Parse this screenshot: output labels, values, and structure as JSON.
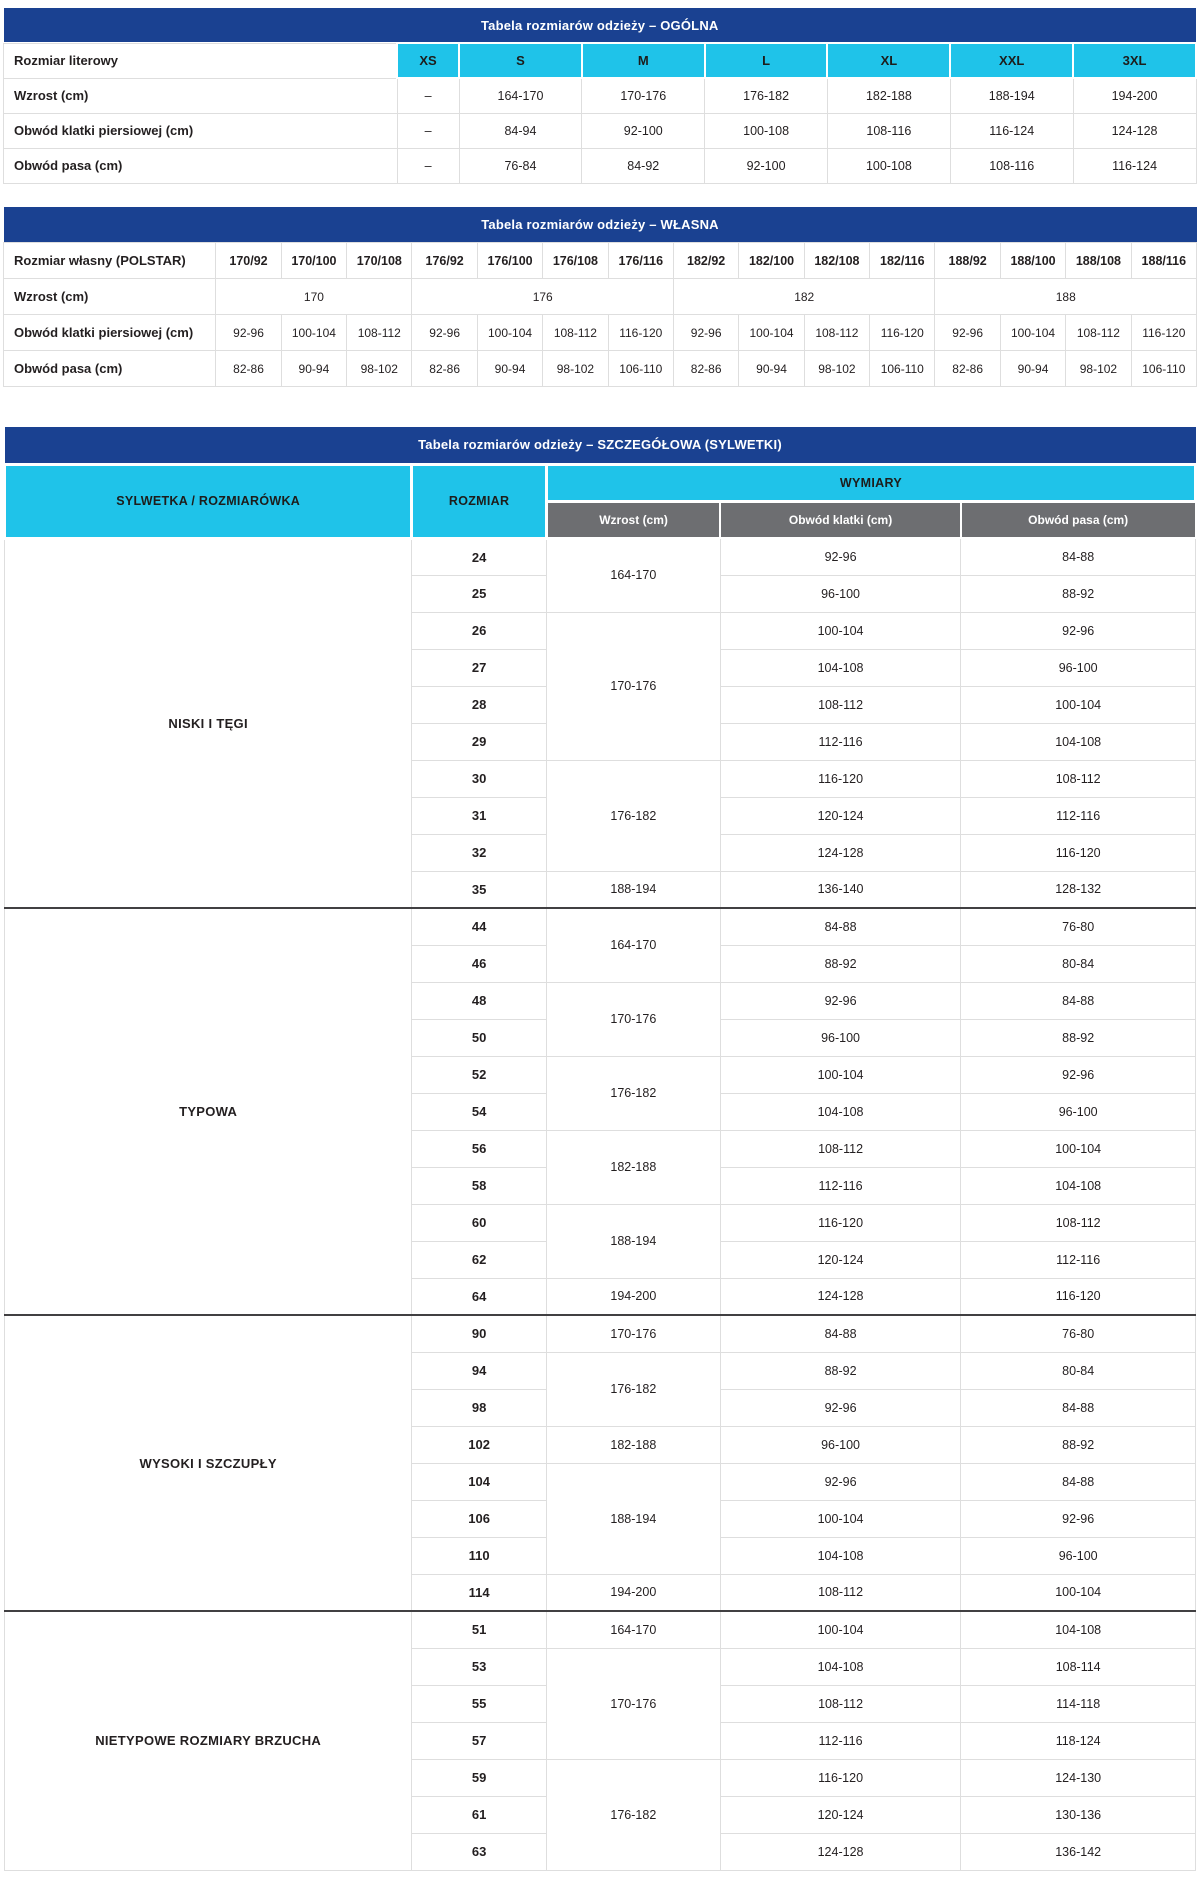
{
  "colors": {
    "navy": "#1a4191",
    "cyan": "#1fc3e9",
    "gray": "#6d6e71",
    "dark_divider": "#414042",
    "text": "#231f20"
  },
  "table_general": {
    "title": "Tabela rozmiarów odzieży – OGÓLNA",
    "size_row_label": "Rozmiar literowy",
    "sizes": [
      "XS",
      "S",
      "M",
      "L",
      "XL",
      "XXL",
      "3XL"
    ],
    "rows": [
      {
        "label": "Wzrost (cm)",
        "values": [
          "–",
          "164-170",
          "170-176",
          "176-182",
          "182-188",
          "188-194",
          "194-200"
        ]
      },
      {
        "label": "Obwód klatki piersiowej (cm)",
        "values": [
          "–",
          "84-94",
          "92-100",
          "100-108",
          "108-116",
          "116-124",
          "124-128"
        ]
      },
      {
        "label": "Obwód pasa (cm)",
        "values": [
          "–",
          "76-84",
          "84-92",
          "92-100",
          "100-108",
          "108-116",
          "116-124"
        ]
      }
    ]
  },
  "table_own": {
    "title": "Tabela rozmiarów odzieży – WŁASNA",
    "size_row_label": "Rozmiar własny (POLSTAR)",
    "sizes": [
      "170/92",
      "170/100",
      "170/108",
      "176/92",
      "176/100",
      "176/108",
      "176/116",
      "182/92",
      "182/100",
      "182/108",
      "182/116",
      "188/92",
      "188/100",
      "188/108",
      "188/116"
    ],
    "height_row_label": "Wzrost (cm)",
    "height_groups": [
      {
        "value": "170",
        "span": 3
      },
      {
        "value": "176",
        "span": 4
      },
      {
        "value": "182",
        "span": 4
      },
      {
        "value": "188",
        "span": 4
      }
    ],
    "chest_row_label": "Obwód klatki piersiowej (cm)",
    "chest_values": [
      "92-96",
      "100-104",
      "108-112",
      "92-96",
      "100-104",
      "108-112",
      "116-120",
      "92-96",
      "100-104",
      "108-112",
      "116-120",
      "92-96",
      "100-104",
      "108-112",
      "116-120"
    ],
    "waist_row_label": "Obwód pasa (cm)",
    "waist_values": [
      "82-86",
      "90-94",
      "98-102",
      "82-86",
      "90-94",
      "98-102",
      "106-110",
      "82-86",
      "90-94",
      "98-102",
      "106-110",
      "82-86",
      "90-94",
      "98-102",
      "106-110"
    ]
  },
  "table_detailed": {
    "title": "Tabela rozmiarów odzieży – SZCZEGÓŁOWA (SYLWETKI)",
    "col_silhouette": "SYLWETKA / ROZMIARÓWKA",
    "col_size": "ROZMIAR",
    "col_dimensions": "WYMIARY",
    "sub_height": "Wzrost (cm)",
    "sub_chest": "Obwód klatki (cm)",
    "sub_waist": "Obwód pasa (cm)",
    "sections": [
      {
        "name": "NISKI I TĘGI",
        "rows": [
          {
            "size": "24",
            "height": "164-170",
            "height_span": 2,
            "chest": "92-96",
            "waist": "84-88"
          },
          {
            "size": "25",
            "chest": "96-100",
            "waist": "88-92"
          },
          {
            "size": "26",
            "height": "170-176",
            "height_span": 4,
            "chest": "100-104",
            "waist": "92-96"
          },
          {
            "size": "27",
            "chest": "104-108",
            "waist": "96-100"
          },
          {
            "size": "28",
            "chest": "108-112",
            "waist": "100-104"
          },
          {
            "size": "29",
            "chest": "112-116",
            "waist": "104-108"
          },
          {
            "size": "30",
            "height": "176-182",
            "height_span": 3,
            "chest": "116-120",
            "waist": "108-112"
          },
          {
            "size": "31",
            "chest": "120-124",
            "waist": "112-116"
          },
          {
            "size": "32",
            "chest": "124-128",
            "waist": "116-120"
          },
          {
            "size": "35",
            "height": "188-194",
            "height_span": 1,
            "chest": "136-140",
            "waist": "128-132"
          }
        ]
      },
      {
        "name": "TYPOWA",
        "rows": [
          {
            "size": "44",
            "height": "164-170",
            "height_span": 2,
            "chest": "84-88",
            "waist": "76-80"
          },
          {
            "size": "46",
            "chest": "88-92",
            "waist": "80-84"
          },
          {
            "size": "48",
            "height": "170-176",
            "height_span": 2,
            "chest": "92-96",
            "waist": "84-88"
          },
          {
            "size": "50",
            "chest": "96-100",
            "waist": "88-92"
          },
          {
            "size": "52",
            "height": "176-182",
            "height_span": 2,
            "chest": "100-104",
            "waist": "92-96"
          },
          {
            "size": "54",
            "chest": "104-108",
            "waist": "96-100"
          },
          {
            "size": "56",
            "height": "182-188",
            "height_span": 2,
            "chest": "108-112",
            "waist": "100-104"
          },
          {
            "size": "58",
            "chest": "112-116",
            "waist": "104-108"
          },
          {
            "size": "60",
            "height": "188-194",
            "height_span": 2,
            "chest": "116-120",
            "waist": "108-112"
          },
          {
            "size": "62",
            "chest": "120-124",
            "waist": "112-116"
          },
          {
            "size": "64",
            "height": "194-200",
            "height_span": 1,
            "chest": "124-128",
            "waist": "116-120"
          }
        ]
      },
      {
        "name": "WYSOKI I SZCZUPŁY",
        "rows": [
          {
            "size": "90",
            "height": "170-176",
            "height_span": 1,
            "chest": "84-88",
            "waist": "76-80"
          },
          {
            "size": "94",
            "height": "176-182",
            "height_span": 2,
            "chest": "88-92",
            "waist": "80-84"
          },
          {
            "size": "98",
            "chest": "92-96",
            "waist": "84-88"
          },
          {
            "size": "102",
            "height": "182-188",
            "height_span": 1,
            "chest": "96-100",
            "waist": "88-92"
          },
          {
            "size": "104",
            "height": "188-194",
            "height_span": 3,
            "chest": "92-96",
            "waist": "84-88"
          },
          {
            "size": "106",
            "chest": "100-104",
            "waist": "92-96"
          },
          {
            "size": "110",
            "chest": "104-108",
            "waist": "96-100"
          },
          {
            "size": "114",
            "height": "194-200",
            "height_span": 1,
            "chest": "108-112",
            "waist": "100-104"
          }
        ]
      },
      {
        "name": "NIETYPOWE ROZMIARY BRZUCHA",
        "rows": [
          {
            "size": "51",
            "height": "164-170",
            "height_span": 1,
            "chest": "100-104",
            "waist": "104-108"
          },
          {
            "size": "53",
            "height": "170-176",
            "height_span": 3,
            "chest": "104-108",
            "waist": "108-114"
          },
          {
            "size": "55",
            "chest": "108-112",
            "waist": "114-118"
          },
          {
            "size": "57",
            "chest": "112-116",
            "waist": "118-124"
          },
          {
            "size": "59",
            "height": "176-182",
            "height_span": 3,
            "chest": "116-120",
            "waist": "124-130"
          },
          {
            "size": "61",
            "chest": "120-124",
            "waist": "130-136"
          },
          {
            "size": "63",
            "chest": "124-128",
            "waist": "136-142"
          }
        ]
      }
    ]
  }
}
